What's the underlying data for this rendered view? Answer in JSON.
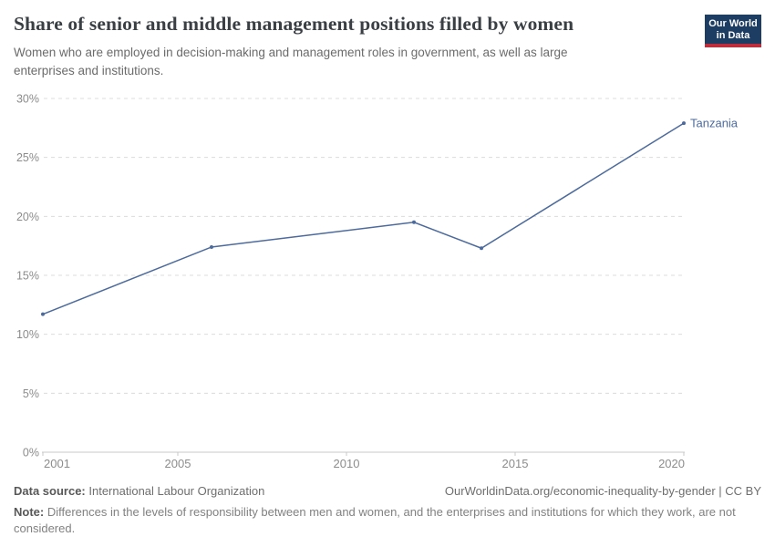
{
  "header": {
    "title": "Share of senior and middle management positions filled by women",
    "subtitle": "Women who are employed in decision-making and management roles in government, as well as large enterprises and institutions.",
    "logo": {
      "line1": "Our World",
      "line2": "in Data"
    }
  },
  "chart_data": {
    "type": "line",
    "title": "Share of senior and middle management positions filled by women",
    "series": [
      {
        "name": "Tanzania",
        "color": "#4c6a9c",
        "x": [
          2001,
          2006,
          2012,
          2014,
          2020
        ],
        "values": [
          11.7,
          17.4,
          19.5,
          17.3,
          27.9
        ]
      }
    ],
    "xlabel": "",
    "ylabel": "",
    "xlim": [
      2001,
      2020
    ],
    "ylim": [
      0,
      30
    ],
    "xticks": [
      2001,
      2005,
      2010,
      2015,
      2020
    ],
    "yticks": [
      0,
      5,
      10,
      15,
      20,
      25,
      30
    ],
    "ytick_suffix": "%",
    "grid": "horizontal-dashed",
    "legend_position": "end-of-line"
  },
  "colors": {
    "line": "#4c6a9c",
    "gridline": "#dcdcdc",
    "axis": "#c8c8c8",
    "tick_label": "#8c8c8c",
    "logo_bg": "#1d3d63",
    "logo_bar": "#be2d3c"
  },
  "footer": {
    "datasource_label": "Data source:",
    "datasource_value": " International Labour Organization",
    "attribution": "OurWorldinData.org/economic-inequality-by-gender | CC BY",
    "note_label": "Note:",
    "note_text": " Differences in the levels of responsibility between men and women, and the enterprises and institutions for which they work, are not considered."
  }
}
